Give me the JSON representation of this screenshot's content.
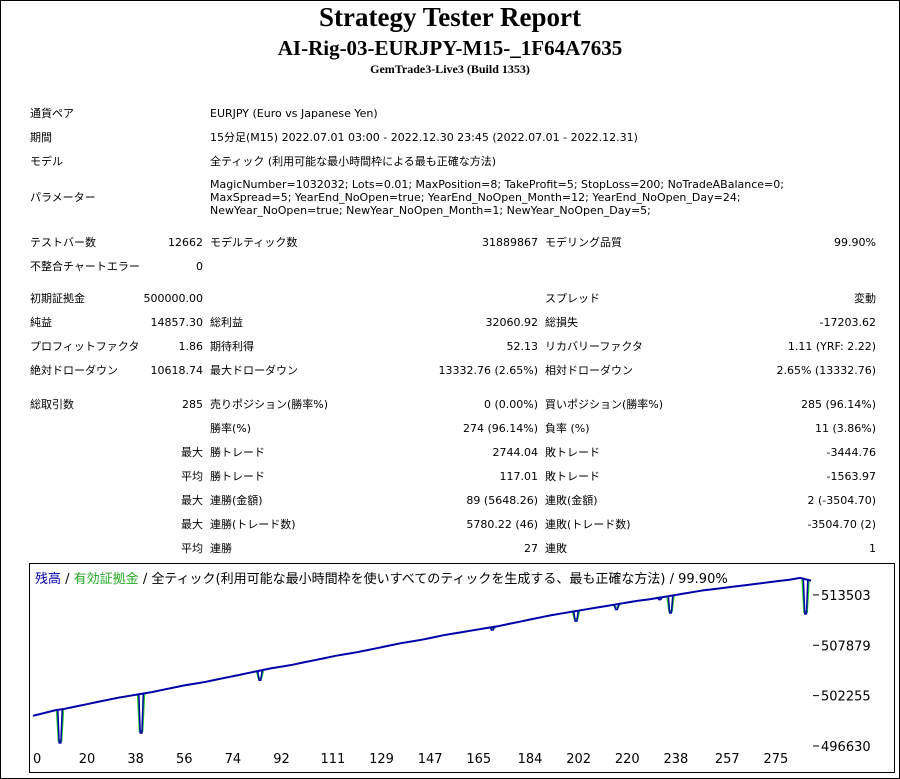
{
  "report": {
    "title": "Strategy Tester Report",
    "ea_name": "AI-Rig-03-EURJPY-M15-_1F64A7635",
    "server": "GemTrade3-Live3 (Build 1353)"
  },
  "info": {
    "symbol_label": "通貨ペア",
    "symbol_value": "EURJPY (Euro vs Japanese Yen)",
    "period_label": "期間",
    "period_value": "15分足(M15) 2022.07.01 03:00 - 2022.12.30 23:45 (2022.07.01 - 2022.12.31)",
    "model_label": "モデル",
    "model_value": "全ティック (利用可能な最小時間枠による最も正確な方法)",
    "params_label": "パラメーター",
    "params_value": "MagicNumber=1032032; Lots=0.01; MaxPosition=8; TakeProfit=5; StopLoss=200; NoTradeABalance=0; MaxSpread=5; YearEnd_NoOpen=true; YearEnd_NoOpen_Month=12; YearEnd_NoOpen_Day=24; NewYear_NoOpen=true; NewYear_NoOpen_Month=1; NewYear_NoOpen_Day=5;"
  },
  "stats": {
    "bars_label": "テストバー数",
    "bars_value": "12662",
    "ticks_label": "モデルティック数",
    "ticks_value": "31889867",
    "quality_label": "モデリング品質",
    "quality_value": "99.90%",
    "mismatch_label": "不整合チャートエラー",
    "mismatch_value": "0",
    "deposit_label": "初期証拠金",
    "deposit_value": "500000.00",
    "spread_label": "スプレッド",
    "spread_value": "変動",
    "net_label": "純益",
    "net_value": "14857.30",
    "gross_profit_label": "総利益",
    "gross_profit_value": "32060.92",
    "gross_loss_label": "総損失",
    "gross_loss_value": "-17203.62",
    "pf_label": "プロフィットファクタ",
    "pf_value": "1.86",
    "expected_label": "期待利得",
    "expected_value": "52.13",
    "recovery_label": "リカバリーファクタ",
    "recovery_value": "1.11 (YRF: 2.22)",
    "abs_dd_label": "絶対ドローダウン",
    "abs_dd_value": "10618.74",
    "max_dd_label": "最大ドローダウン",
    "max_dd_value": "13332.76 (2.65%)",
    "rel_dd_label": "相対ドローダウン",
    "rel_dd_value": "2.65% (13332.76)",
    "total_trades_label": "総取引数",
    "total_trades_value": "285",
    "short_label": "売りポジション(勝率%)",
    "short_value": "0 (0.00%)",
    "long_label": "買いポジション(勝率%)",
    "long_value": "285 (96.14%)",
    "winrate_label": "勝率(%)",
    "winrate_value": "274 (96.14%)",
    "lossrate_label": "負率 (%)",
    "lossrate_value": "11 (3.86%)",
    "max_label": "最大",
    "avg_label": "平均",
    "largest_win_label": "勝トレード",
    "largest_win_value": "2744.04",
    "largest_loss_label": "敗トレード",
    "largest_loss_value": "-3444.76",
    "avg_win_label": "勝トレード",
    "avg_win_value": "117.01",
    "avg_loss_label": "敗トレード",
    "avg_loss_value": "-1563.97",
    "cons_win_amt_label": "連勝(金額)",
    "cons_win_amt_value": "89 (5648.26)",
    "cons_loss_amt_label": "連敗(金額)",
    "cons_loss_amt_value": "2 (-3504.70)",
    "cons_win_cnt_label": "連勝(トレード数)",
    "cons_win_cnt_value": "5780.22 (46)",
    "cons_loss_cnt_label": "連敗(トレード数)",
    "cons_loss_cnt_value": "-3504.70 (2)",
    "avg_cons_win_label": "連勝",
    "avg_cons_win_value": "27",
    "avg_cons_loss_label": "連敗",
    "avg_cons_loss_value": "1"
  },
  "chart_data": {
    "type": "line",
    "legend_balance": "残高",
    "legend_sep": " / ",
    "legend_equity": "有効証拠金",
    "legend_rest": " / 全ティック(利用可能な最小時間枠を使いすべてのティックを生成する、最も正確な方法) / 99.90%",
    "balance_color": "#0000aa",
    "equity_color": "#22cc22",
    "x_ticks": [
      "0",
      "20",
      "38",
      "56",
      "74",
      "92",
      "111",
      "129",
      "147",
      "165",
      "184",
      "202",
      "220",
      "238",
      "257",
      "275"
    ],
    "y_ticks": [
      "513503",
      "507879",
      "502255",
      "496630"
    ],
    "xlim": [
      0,
      288
    ],
    "ylim": [
      496630,
      515500
    ],
    "x": [
      0,
      4,
      8,
      12,
      16,
      20,
      24,
      28,
      32,
      36,
      40,
      44,
      48,
      52,
      56,
      60,
      64,
      68,
      72,
      76,
      80,
      84,
      88,
      92,
      96,
      100,
      104,
      108,
      112,
      116,
      120,
      124,
      128,
      132,
      136,
      140,
      144,
      148,
      152,
      156,
      160,
      164,
      168,
      172,
      176,
      180,
      184,
      188,
      192,
      196,
      200,
      204,
      208,
      212,
      216,
      220,
      224,
      228,
      232,
      236,
      240,
      244,
      248,
      252,
      256,
      260,
      264,
      268,
      272,
      276,
      280,
      284,
      288
    ],
    "balance": [
      500000,
      500300,
      500600,
      500800,
      501050,
      501300,
      501550,
      501800,
      502050,
      502250,
      502450,
      502650,
      502900,
      503150,
      503400,
      503600,
      503800,
      504050,
      504300,
      504550,
      504800,
      505050,
      505300,
      505500,
      505700,
      505950,
      506200,
      506450,
      506700,
      506900,
      507100,
      507350,
      507600,
      507850,
      508100,
      508300,
      508500,
      508750,
      509000,
      509200,
      509400,
      509600,
      509800,
      510000,
      510250,
      510500,
      510750,
      511000,
      511250,
      511450,
      511650,
      511850,
      512050,
      512250,
      512450,
      512650,
      512850,
      513000,
      513200,
      513400,
      513600,
      513800,
      514000,
      514150,
      514300,
      514450,
      514600,
      514750,
      514900,
      515050,
      515200,
      515400,
      515100
    ],
    "equity_dips": [
      {
        "x": 10,
        "low": 497200
      },
      {
        "x": 40,
        "low": 498300
      },
      {
        "x": 84,
        "low": 504200
      },
      {
        "x": 170,
        "low": 509800
      },
      {
        "x": 201,
        "low": 510800
      },
      {
        "x": 216,
        "low": 512100
      },
      {
        "x": 232,
        "low": 513200
      },
      {
        "x": 236,
        "low": 511700
      },
      {
        "x": 286,
        "low": 511600
      }
    ]
  }
}
